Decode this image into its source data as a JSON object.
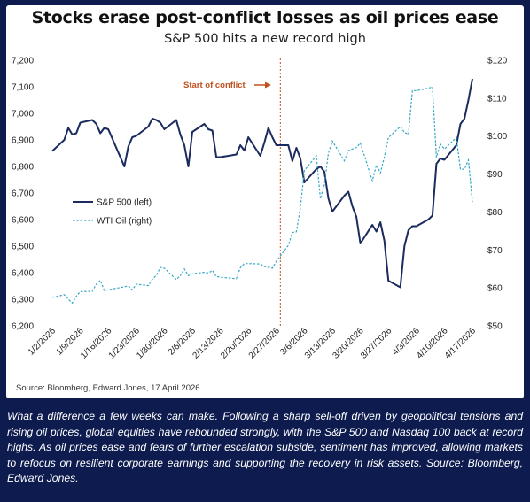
{
  "title": "Stocks erase post-conflict losses as oil prices ease",
  "subtitle": "S&P 500 hits a new record high",
  "source": "Source: Bloomberg, Edward Jones, 17 April 2026",
  "caption": "What a difference a few weeks can make. Following a sharp sell-off driven by geopolitical tensions and rising oil prices, global equities have rebounded strongly, with the S&P 500 and Nasdaq 100 back at record highs. As oil prices ease and fears of further escalation subside, sentiment has improved, allowing markets to refocus on resilient corporate earnings and supporting the recovery in risk assets. Source: Bloomberg, Edward Jones.",
  "colors": {
    "background": "#0d1b4e",
    "sp500": "#1b2b5e",
    "oil": "#35a7c6",
    "conflict_marker": "#c0501f"
  },
  "chart_data": {
    "type": "line",
    "xlabel": "",
    "x_tick_labels": [
      "1/2/2026",
      "1/9/2026",
      "1/16/2026",
      "1/23/2026",
      "1/30/2026",
      "2/6/2026",
      "2/13/2026",
      "2/20/2026",
      "2/27/2026",
      "3/6/2026",
      "3/13/2026",
      "3/20/2026",
      "3/27/2026",
      "4/3/2026",
      "4/10/2026",
      "4/17/2026"
    ],
    "x_range": [
      "1/2/2026",
      "4/17/2026"
    ],
    "y_left": {
      "ylim": [
        6200,
        7200
      ],
      "ticks": [
        "6,200",
        "6,300",
        "6,400",
        "6,500",
        "6,600",
        "6,700",
        "6,800",
        "6,900",
        "7,000",
        "7,100",
        "7,200"
      ]
    },
    "y_right": {
      "ylim": [
        50,
        120
      ],
      "ticks": [
        "$50",
        "$60",
        "$70",
        "$80",
        "$90",
        "$100",
        "$110",
        "$120"
      ]
    },
    "grid": false,
    "legend_position": "left-middle",
    "annotation": {
      "label": "Start of conflict",
      "date": "2/28/2026"
    },
    "series": [
      {
        "name": "S&P 500 (left)",
        "axis": "left",
        "style": "solid",
        "points": [
          [
            "1/2/2026",
            6858
          ],
          [
            "1/5/2026",
            6900
          ],
          [
            "1/6/2026",
            6945
          ],
          [
            "1/7/2026",
            6920
          ],
          [
            "1/8/2026",
            6925
          ],
          [
            "1/9/2026",
            6965
          ],
          [
            "1/12/2026",
            6975
          ],
          [
            "1/13/2026",
            6960
          ],
          [
            "1/14/2026",
            6925
          ],
          [
            "1/15/2026",
            6945
          ],
          [
            "1/16/2026",
            6940
          ],
          [
            "1/20/2026",
            6800
          ],
          [
            "1/21/2026",
            6875
          ],
          [
            "1/22/2026",
            6910
          ],
          [
            "1/23/2026",
            6915
          ],
          [
            "1/26/2026",
            6950
          ],
          [
            "1/27/2026",
            6980
          ],
          [
            "1/28/2026",
            6975
          ],
          [
            "1/29/2026",
            6965
          ],
          [
            "1/30/2026",
            6940
          ],
          [
            "2/2/2026",
            6975
          ],
          [
            "2/3/2026",
            6920
          ],
          [
            "2/4/2026",
            6880
          ],
          [
            "2/5/2026",
            6800
          ],
          [
            "2/6/2026",
            6930
          ],
          [
            "2/9/2026",
            6960
          ],
          [
            "2/10/2026",
            6940
          ],
          [
            "2/11/2026",
            6935
          ],
          [
            "2/12/2026",
            6835
          ],
          [
            "2/13/2026",
            6835
          ],
          [
            "2/17/2026",
            6845
          ],
          [
            "2/18/2026",
            6880
          ],
          [
            "2/19/2026",
            6860
          ],
          [
            "2/20/2026",
            6910
          ],
          [
            "2/23/2026",
            6840
          ],
          [
            "2/24/2026",
            6890
          ],
          [
            "2/25/2026",
            6945
          ],
          [
            "2/26/2026",
            6910
          ],
          [
            "2/27/2026",
            6880
          ],
          [
            "3/2/2026",
            6880
          ],
          [
            "3/3/2026",
            6820
          ],
          [
            "3/4/2026",
            6870
          ],
          [
            "3/5/2026",
            6830
          ],
          [
            "3/6/2026",
            6740
          ],
          [
            "3/9/2026",
            6790
          ],
          [
            "3/10/2026",
            6800
          ],
          [
            "3/11/2026",
            6780
          ],
          [
            "3/12/2026",
            6680
          ],
          [
            "3/13/2026",
            6630
          ],
          [
            "3/16/2026",
            6690
          ],
          [
            "3/17/2026",
            6705
          ],
          [
            "3/18/2026",
            6650
          ],
          [
            "3/19/2026",
            6610
          ],
          [
            "3/20/2026",
            6510
          ],
          [
            "3/23/2026",
            6580
          ],
          [
            "3/24/2026",
            6555
          ],
          [
            "3/25/2026",
            6590
          ],
          [
            "3/26/2026",
            6520
          ],
          [
            "3/27/2026",
            6370
          ],
          [
            "3/30/2026",
            6345
          ],
          [
            "3/31/2026",
            6500
          ],
          [
            "4/1/2026",
            6560
          ],
          [
            "4/2/2026",
            6575
          ],
          [
            "4/3/2026",
            6575
          ],
          [
            "4/6/2026",
            6600
          ],
          [
            "4/7/2026",
            6615
          ],
          [
            "4/8/2026",
            6810
          ],
          [
            "4/9/2026",
            6830
          ],
          [
            "4/10/2026",
            6825
          ],
          [
            "4/13/2026",
            6880
          ],
          [
            "4/14/2026",
            6960
          ],
          [
            "4/15/2026",
            6980
          ],
          [
            "4/16/2026",
            7050
          ],
          [
            "4/17/2026",
            7130
          ]
        ]
      },
      {
        "name": "WTI Oil (right)",
        "axis": "right",
        "style": "dashed",
        "points": [
          [
            "1/2/2026",
            57.5
          ],
          [
            "1/5/2026",
            58.2
          ],
          [
            "1/6/2026",
            57.0
          ],
          [
            "1/7/2026",
            56.0
          ],
          [
            "1/8/2026",
            57.8
          ],
          [
            "1/9/2026",
            59.0
          ],
          [
            "1/12/2026",
            59.1
          ],
          [
            "1/13/2026",
            61.0
          ],
          [
            "1/14/2026",
            62.0
          ],
          [
            "1/15/2026",
            59.3
          ],
          [
            "1/16/2026",
            59.5
          ],
          [
            "1/20/2026",
            60.3
          ],
          [
            "1/21/2026",
            60.5
          ],
          [
            "1/22/2026",
            59.5
          ],
          [
            "1/23/2026",
            61.0
          ],
          [
            "1/26/2026",
            60.6
          ],
          [
            "1/27/2026",
            62.3
          ],
          [
            "1/28/2026",
            63.3
          ],
          [
            "1/29/2026",
            65.4
          ],
          [
            "1/30/2026",
            65.2
          ],
          [
            "2/2/2026",
            62.2
          ],
          [
            "2/3/2026",
            63.2
          ],
          [
            "2/4/2026",
            65.0
          ],
          [
            "2/5/2026",
            63.2
          ],
          [
            "2/6/2026",
            63.7
          ],
          [
            "2/9/2026",
            64.1
          ],
          [
            "2/10/2026",
            63.9
          ],
          [
            "2/11/2026",
            64.6
          ],
          [
            "2/12/2026",
            63.0
          ],
          [
            "2/13/2026",
            62.8
          ],
          [
            "2/17/2026",
            62.4
          ],
          [
            "2/18/2026",
            65.3
          ],
          [
            "2/19/2026",
            66.4
          ],
          [
            "2/20/2026",
            66.4
          ],
          [
            "2/23/2026",
            66.3
          ],
          [
            "2/24/2026",
            65.6
          ],
          [
            "2/25/2026",
            65.4
          ],
          [
            "2/26/2026",
            65.2
          ],
          [
            "2/27/2026",
            67.0
          ],
          [
            "3/2/2026",
            71.2
          ],
          [
            "3/3/2026",
            74.6
          ],
          [
            "3/4/2026",
            74.8
          ],
          [
            "3/5/2026",
            81.0
          ],
          [
            "3/6/2026",
            90.9
          ],
          [
            "3/9/2026",
            94.8
          ],
          [
            "3/10/2026",
            83.5
          ],
          [
            "3/11/2026",
            87.2
          ],
          [
            "3/12/2026",
            95.5
          ],
          [
            "3/13/2026",
            98.7
          ],
          [
            "3/16/2026",
            93.5
          ],
          [
            "3/17/2026",
            96.2
          ],
          [
            "3/18/2026",
            96.6
          ],
          [
            "3/19/2026",
            97.0
          ],
          [
            "3/20/2026",
            98.2
          ],
          [
            "3/23/2026",
            88.2
          ],
          [
            "3/24/2026",
            92.4
          ],
          [
            "3/25/2026",
            90.3
          ],
          [
            "3/26/2026",
            94.5
          ],
          [
            "3/27/2026",
            99.6
          ],
          [
            "3/30/2026",
            102.5
          ],
          [
            "3/31/2026",
            101.0
          ],
          [
            "4/1/2026",
            100.4
          ],
          [
            "4/2/2026",
            112.0
          ],
          [
            "4/3/2026",
            112.0
          ],
          [
            "4/6/2026",
            112.6
          ],
          [
            "4/7/2026",
            113.0
          ],
          [
            "4/8/2026",
            94.4
          ],
          [
            "4/9/2026",
            97.9
          ],
          [
            "4/10/2026",
            96.6
          ],
          [
            "4/13/2026",
            99.6
          ],
          [
            "4/14/2026",
            91.2
          ],
          [
            "4/15/2026",
            91.3
          ],
          [
            "4/16/2026",
            93.7
          ],
          [
            "4/17/2026",
            82.6
          ]
        ]
      }
    ]
  }
}
